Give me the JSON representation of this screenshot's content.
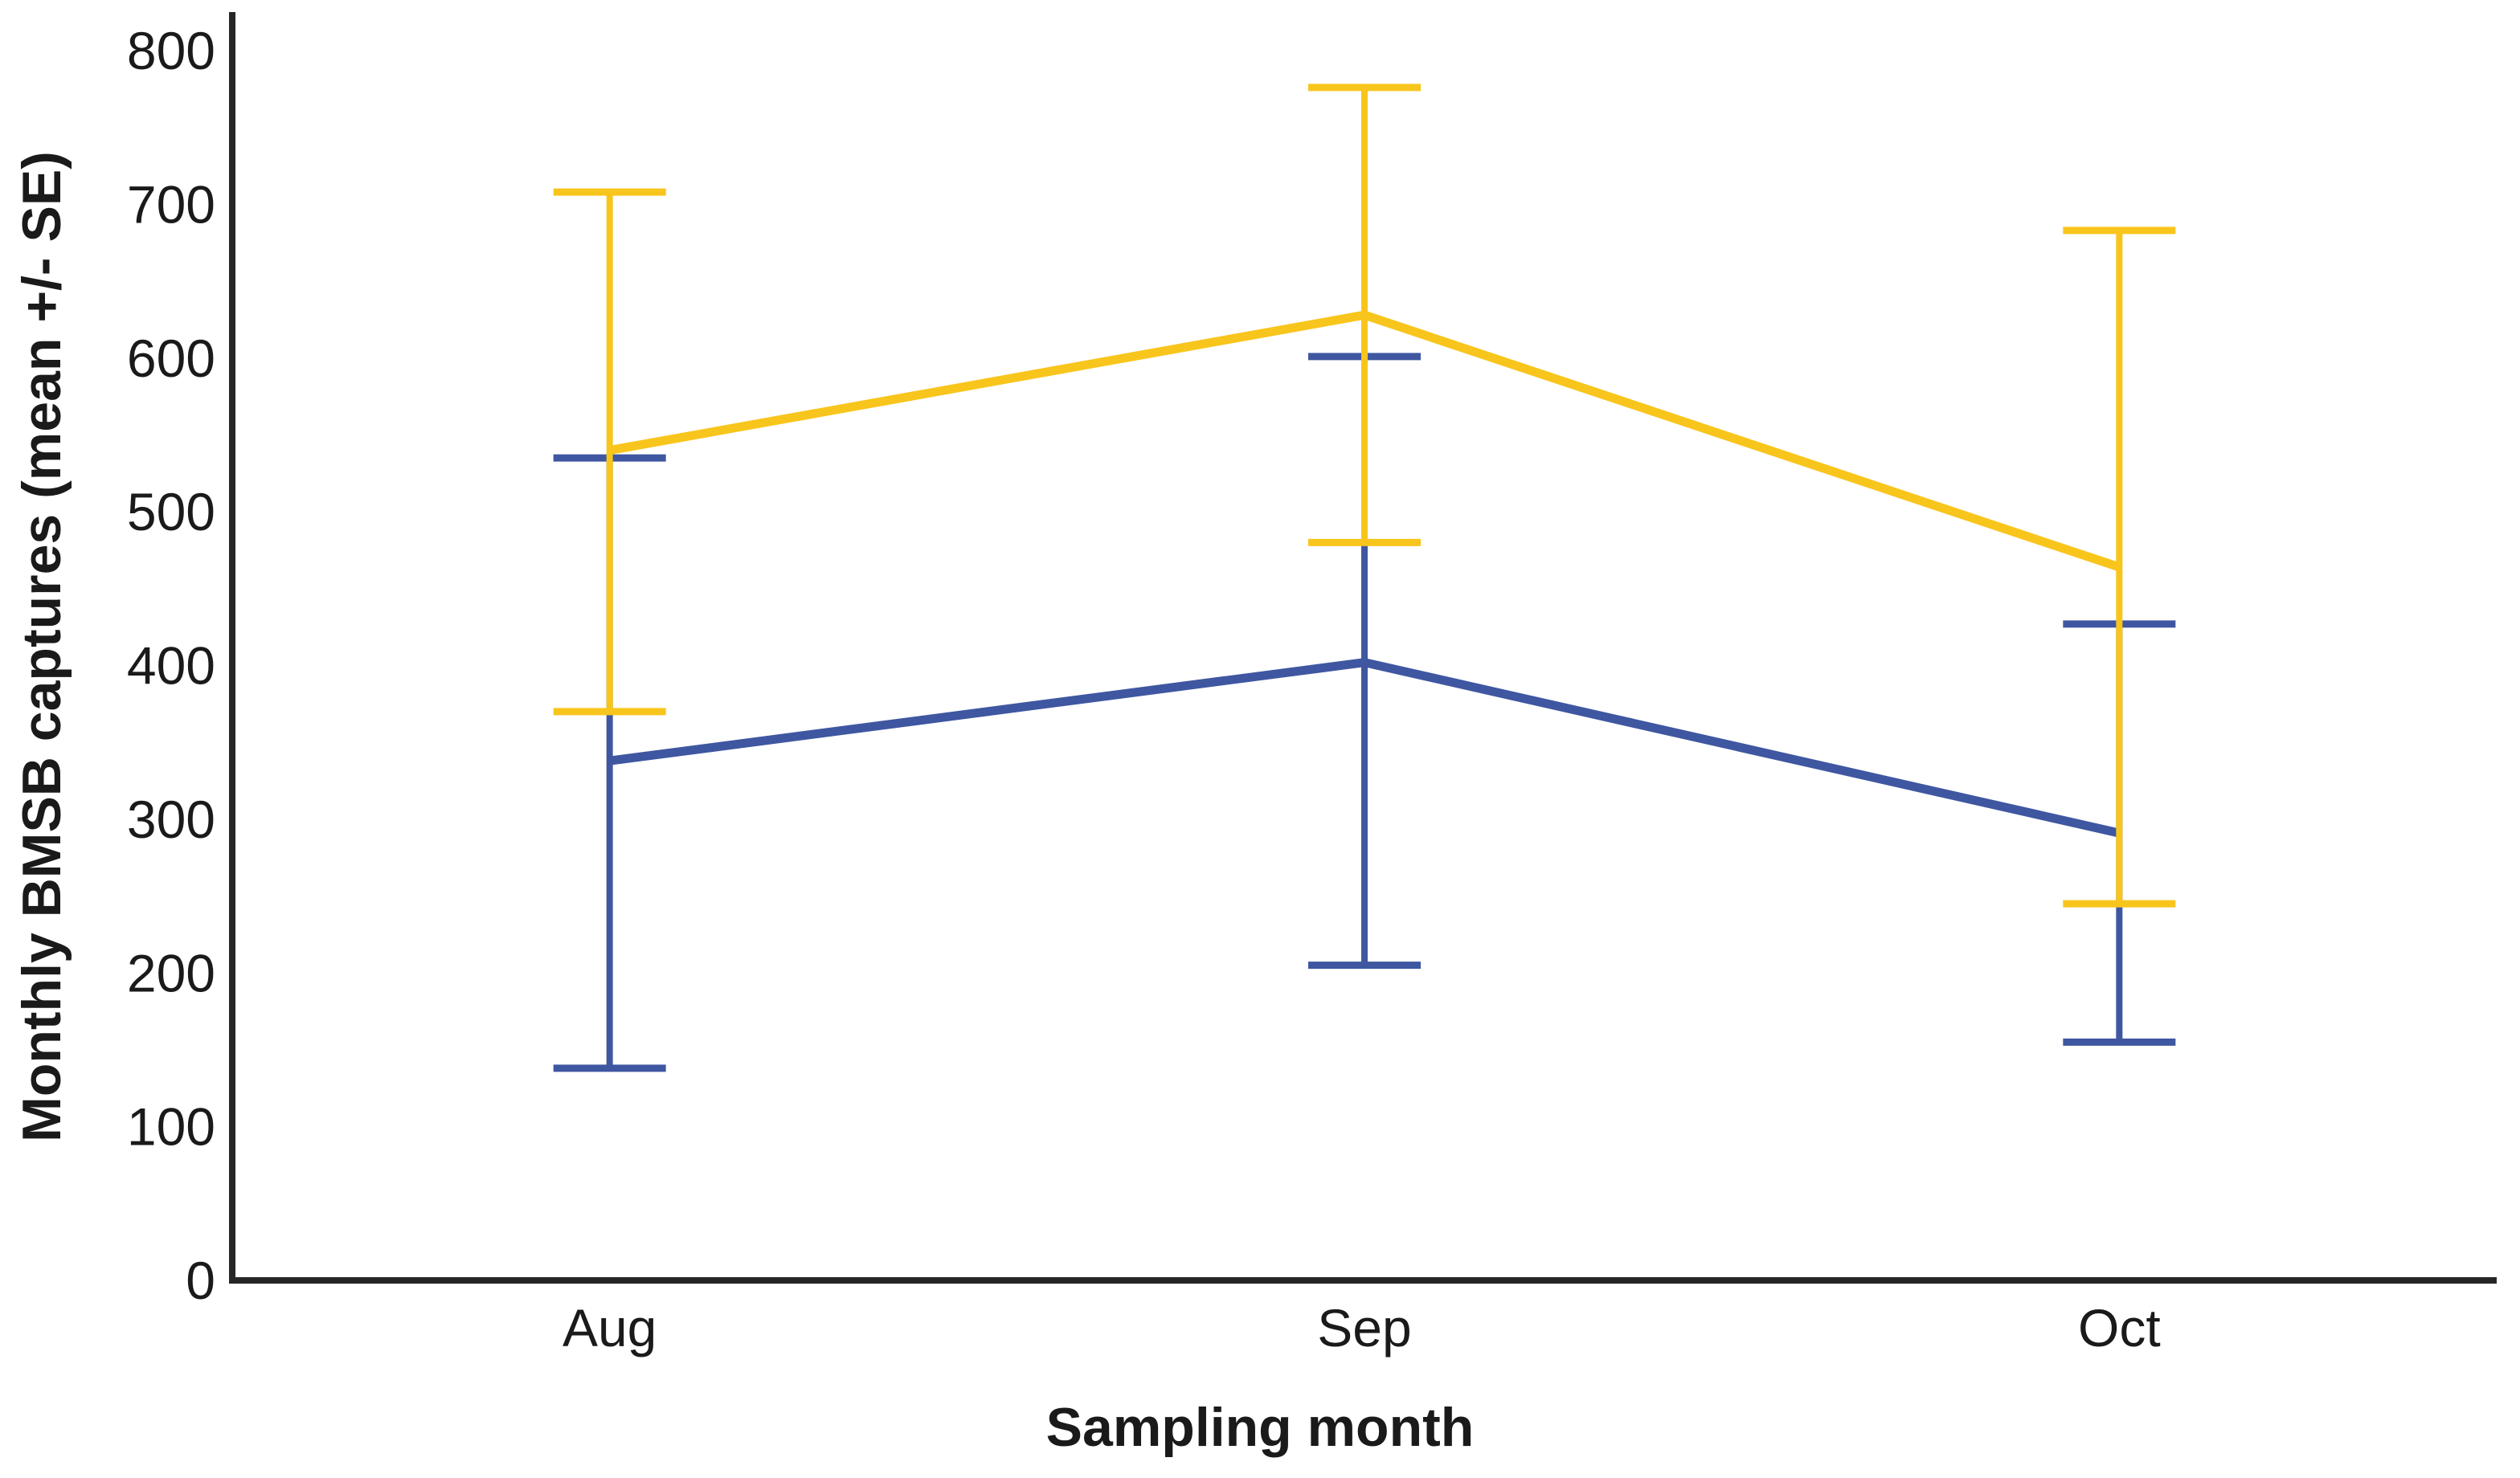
{
  "figure": {
    "background": "#ffffff",
    "axis_color": "#262626",
    "text_color": "#1a1a1a"
  },
  "chart_data": {
    "type": "line",
    "categories": [
      "Aug",
      "Sep",
      "Oct"
    ],
    "series": [
      {
        "name": "blue",
        "color": "#3F57A1",
        "means": [
          338,
          402,
          291
        ],
        "err_upper": [
          535,
          601,
          427
        ],
        "err_lower": [
          138,
          205,
          155
        ]
      },
      {
        "name": "yellow",
        "color": "#F8C51C",
        "means": [
          540,
          628,
          464
        ],
        "err_upper": [
          708,
          776,
          683
        ],
        "err_lower": [
          370,
          480,
          245
        ]
      }
    ],
    "title": "",
    "xlabel": "Sampling month",
    "ylabel": "Monthly BMSB captures (mean +/- SE)",
    "ylim": [
      0,
      800
    ],
    "yticks": [
      0,
      100,
      200,
      300,
      400,
      500,
      600,
      700,
      800
    ],
    "grid": false,
    "legend": "none",
    "error_bars": "mean +/- SE with caps"
  }
}
